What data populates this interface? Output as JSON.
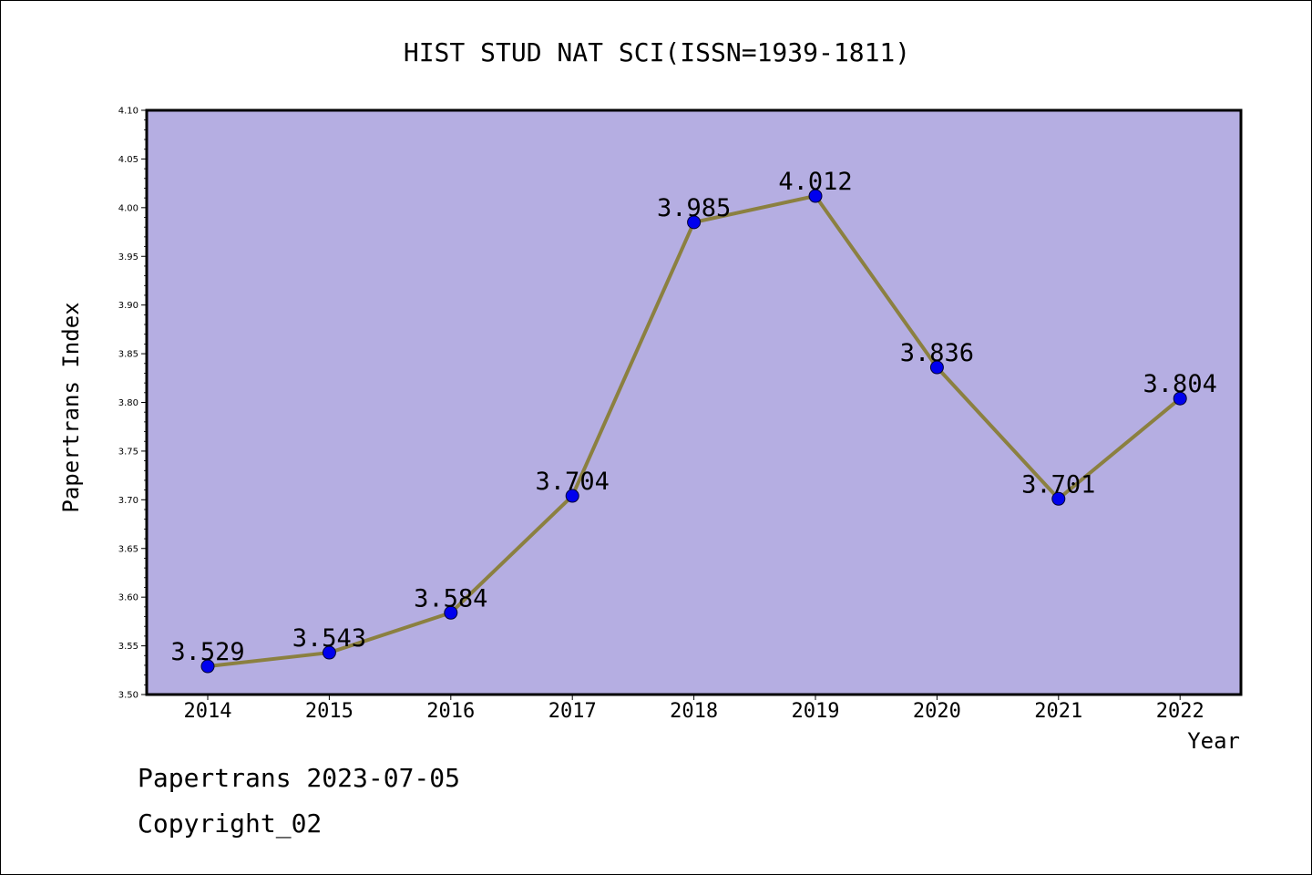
{
  "chart_data": {
    "type": "line",
    "title": "HIST STUD NAT SCI(ISSN=1939-1811)",
    "xlabel": "Year",
    "ylabel": "Papertrans Index",
    "categories": [
      "2014",
      "2015",
      "2016",
      "2017",
      "2018",
      "2019",
      "2020",
      "2021",
      "2022"
    ],
    "values": [
      3.529,
      3.543,
      3.584,
      3.704,
      3.985,
      4.012,
      3.836,
      3.701,
      3.804
    ],
    "data_labels": [
      "3.529",
      "3.543",
      "3.584",
      "3.704",
      "3.985",
      "4.012",
      "3.836",
      "3.701",
      "3.804"
    ],
    "ylim": [
      3.5,
      4.1
    ],
    "yticks": [
      "3.50",
      "3.55",
      "3.60",
      "3.65",
      "3.70",
      "3.75",
      "3.80",
      "3.85",
      "3.90",
      "3.95",
      "4.00",
      "4.05",
      "4.10"
    ],
    "grid": false,
    "colors": {
      "plot_background": "#b5aee2",
      "line": "#8b8040",
      "marker": "#0000ee"
    }
  },
  "footer": {
    "line1": "Papertrans 2023-07-05",
    "line2": "Copyright_02"
  }
}
